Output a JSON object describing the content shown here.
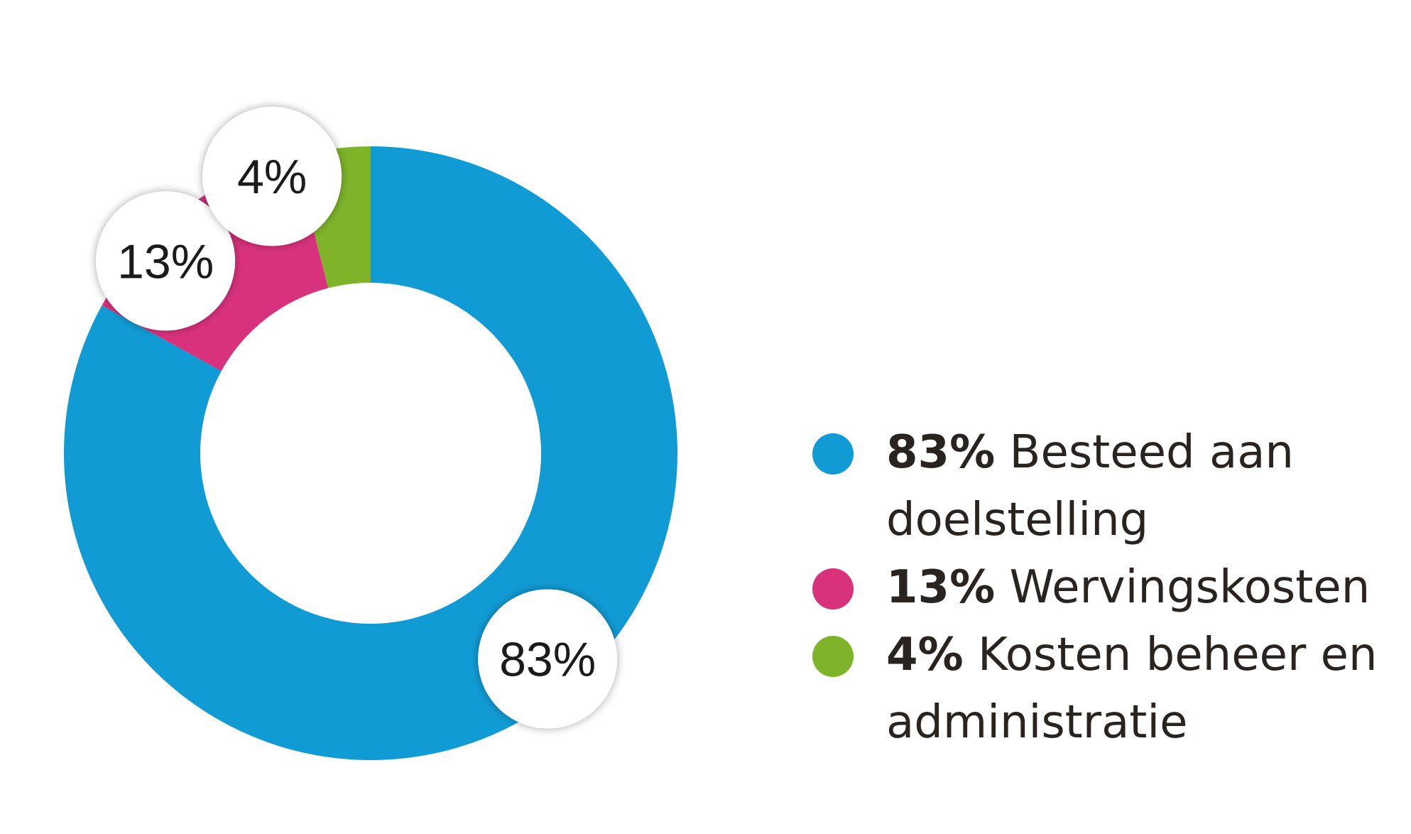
{
  "chart_data": {
    "type": "pie",
    "donut": true,
    "slices": [
      {
        "label": "Besteed aan doelstelling",
        "value": 83,
        "value_label": "83%",
        "color": "#119bd4"
      },
      {
        "label": "Wervingskosten",
        "value": 13,
        "value_label": "13%",
        "color": "#d9327d"
      },
      {
        "label": "Kosten beheer en administratie",
        "value": 4,
        "value_label": "4%",
        "color": "#7fb42a"
      }
    ],
    "legend_position": "right"
  },
  "legend": {
    "items": [
      {
        "pct": "83%",
        "label": "Besteed aan doelstelling",
        "color": "#119bd4"
      },
      {
        "pct": "13%",
        "label": "Wervingskosten",
        "color": "#d9327d"
      },
      {
        "pct": "4%",
        "label": "Kosten beheer en administratie",
        "color": "#7fb42a"
      }
    ]
  }
}
